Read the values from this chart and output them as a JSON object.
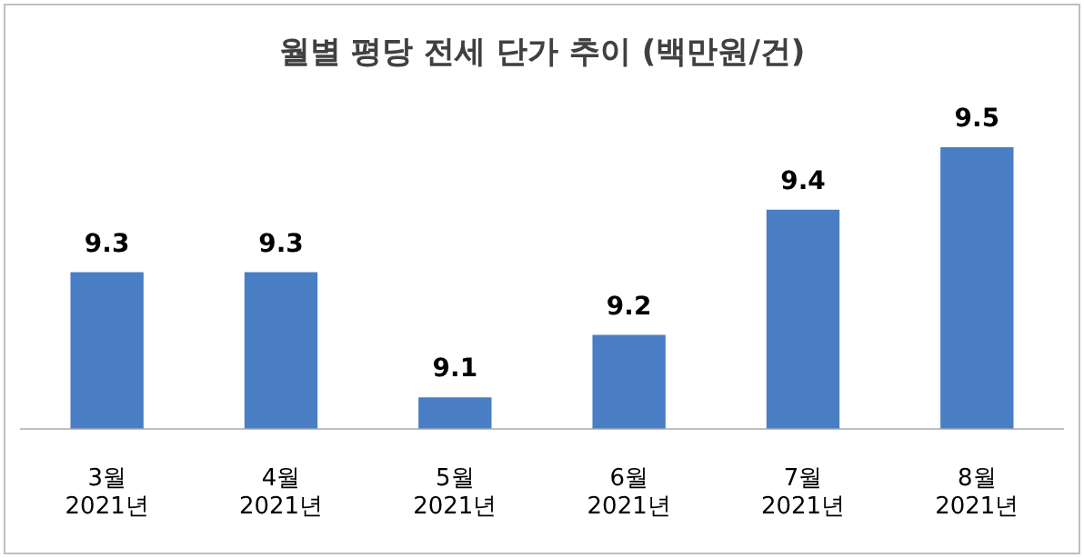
{
  "chart_data": {
    "type": "bar",
    "title": "월별 평당 전세 단가 추이 (백만원/건)",
    "categories": [
      "3월\n2021년",
      "4월\n2021년",
      "5월\n2021년",
      "6월\n2021년",
      "7월\n2021년",
      "8월\n2021년"
    ],
    "values": [
      9.3,
      9.3,
      9.1,
      9.2,
      9.4,
      9.5
    ],
    "color": "#4a7ec4",
    "data_labels": true,
    "grid": false,
    "legend": false
  }
}
